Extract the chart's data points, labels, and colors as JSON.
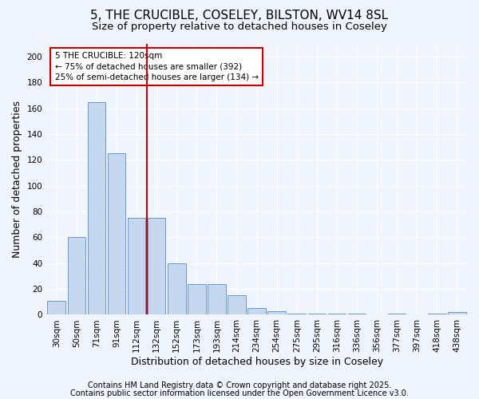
{
  "title1": "5, THE CRUCIBLE, COSELEY, BILSTON, WV14 8SL",
  "title2": "Size of property relative to detached houses in Coseley",
  "xlabel": "Distribution of detached houses by size in Coseley",
  "ylabel": "Number of detached properties",
  "categories": [
    "30sqm",
    "50sqm",
    "71sqm",
    "91sqm",
    "112sqm",
    "132sqm",
    "152sqm",
    "173sqm",
    "193sqm",
    "214sqm",
    "234sqm",
    "254sqm",
    "275sqm",
    "295sqm",
    "316sqm",
    "336sqm",
    "356sqm",
    "377sqm",
    "397sqm",
    "418sqm",
    "438sqm"
  ],
  "values": [
    11,
    60,
    165,
    125,
    75,
    75,
    40,
    24,
    24,
    15,
    5,
    3,
    1,
    1,
    1,
    1,
    0,
    1,
    0,
    1,
    2
  ],
  "bar_color": "#c5d8f0",
  "bar_edge_color": "#6699cc",
  "vline_x": 4.5,
  "vline_color": "#cc0000",
  "annotation_text": "5 THE CRUCIBLE: 120sqm\n← 75% of detached houses are smaller (392)\n25% of semi-detached houses are larger (134) →",
  "annotation_box_color": "#cc0000",
  "annotation_bg": "#ffffff",
  "ylim": [
    0,
    210
  ],
  "yticks": [
    0,
    20,
    40,
    60,
    80,
    100,
    120,
    140,
    160,
    180,
    200
  ],
  "footer1": "Contains HM Land Registry data © Crown copyright and database right 2025.",
  "footer2": "Contains public sector information licensed under the Open Government Licence v3.0.",
  "bg_color": "#f0f4fc",
  "grid_color": "#ffffff",
  "title_fontsize": 11,
  "subtitle_fontsize": 9.5,
  "tick_fontsize": 7.5,
  "ylabel_fontsize": 9,
  "xlabel_fontsize": 9,
  "footer_fontsize": 7
}
